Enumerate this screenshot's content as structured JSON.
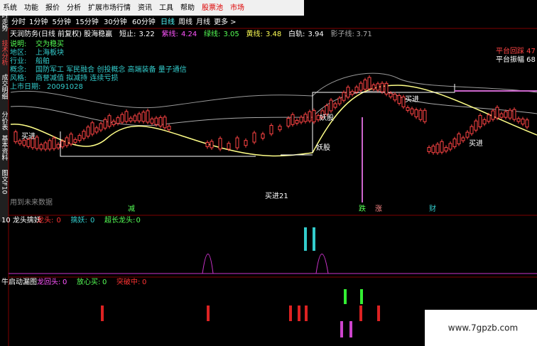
{
  "menu": [
    "系统",
    "功能",
    "报价",
    "分析",
    "扩展市场行情",
    "资讯",
    "工具",
    "帮助",
    "股票池",
    "市场"
  ],
  "side_tabs": [
    "分时走势",
    "技术分析",
    "成交明细",
    "分价表",
    "基本资料",
    "图文F10"
  ],
  "periods": [
    "分时",
    "1分钟",
    "5分钟",
    "15分钟",
    "30分钟",
    "60分钟",
    "日线",
    "周线",
    "月线",
    "更多 >"
  ],
  "main_panel": {
    "title": "天润防务(日线 前复权) 股海稳赢",
    "indicators": [
      {
        "label": "短止:",
        "value": 3.22,
        "color": "#ffffff"
      },
      {
        "label": "紫线:",
        "value": 4.24,
        "color": "#ff55ff"
      },
      {
        "label": "绿线:",
        "value": 3.05,
        "color": "#55ff55"
      },
      {
        "label": "黄线:",
        "value": 3.48,
        "color": "#ffff55"
      },
      {
        "label": "白轨:",
        "value": 3.94,
        "color": "#ffffff"
      },
      {
        "label": "影子线:",
        "value": 3.71,
        "color": "#aaaaaa"
      }
    ],
    "info": [
      {
        "label": "说明:",
        "text": "交为稳买"
      },
      {
        "label": "地区:",
        "text": "上海板块"
      },
      {
        "label": "行业:",
        "text": "船舶"
      },
      {
        "label": "概念:",
        "text": "国防军工 军民融合 创投概念 高端装备 量子通信"
      },
      {
        "label": "风格:",
        "text": "商誉减值 拟减持 连续亏损"
      },
      {
        "label": "上市日期:",
        "text": "20091028"
      }
    ],
    "annotations": [
      "平台回踩 47",
      "平台振幅 68",
      "买进",
      "妖股",
      "妖股",
      "买进",
      "买进",
      "买进21",
      "用到未来数据",
      "减",
      "跌",
      "涨",
      "财"
    ]
  },
  "sub_panel_1": {
    "title": "10 龙头擒妖",
    "legend": [
      {
        "label": "龙头:",
        "value": 0,
        "color": "#ff3333"
      },
      {
        "label": "擒妖:",
        "value": 0,
        "color": "#33cccc"
      },
      {
        "label": "超长龙头:",
        "value": 0,
        "color": "#55ff55"
      }
    ]
  },
  "sub_panel_2": {
    "title": "牛启动漏图",
    "legend": [
      {
        "label": "龙回头:",
        "value": 0,
        "color": "#ff55ff"
      },
      {
        "label": "放心买:",
        "value": 0,
        "color": "#55ff55"
      },
      {
        "label": "突破中:",
        "value": 0,
        "color": "#ff3333"
      }
    ]
  },
  "watermark": "www.7gpzb.com"
}
